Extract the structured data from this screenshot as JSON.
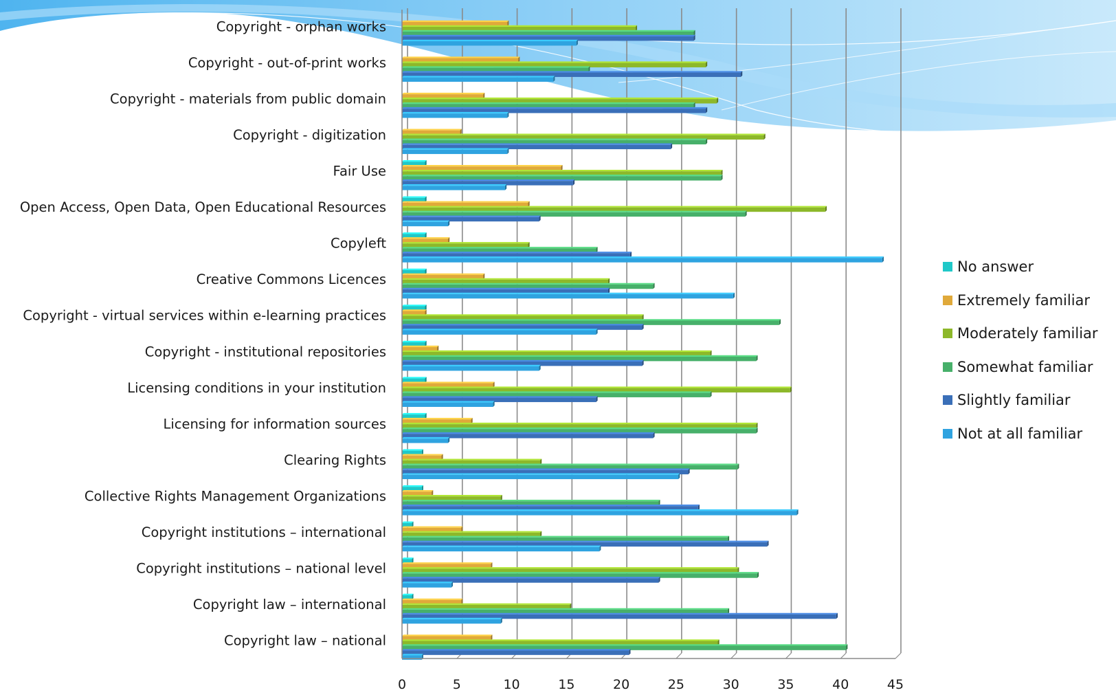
{
  "chart_data": {
    "type": "bar",
    "orientation": "horizontal",
    "categories": [
      "Copyright - orphan works",
      "Copyright -  out-of-print works",
      "Copyright - materials from public domain",
      "Copyright - digitization",
      "Fair Use",
      "Open Access, Open Data, Open Educational Resources",
      "Copyleft",
      "Creative Commons Licences",
      "Copyright - virtual services within e-learning practices",
      "Copyright - institutional repositories",
      "Licensing conditions in your institution",
      "Licensing for information sources",
      "Clearing Rights",
      "Collective Rights Management Organizations",
      "Copyright institutions – international",
      "Copyright institutions – national level",
      "Copyright  law – international",
      "Copyright law – national"
    ],
    "series": [
      {
        "name": "No answer",
        "color": "#1fc8c8",
        "values": [
          0,
          0,
          0,
          0,
          2.1,
          2.1,
          2.1,
          2.1,
          2.1,
          2.1,
          2.1,
          2.1,
          1.8,
          1.8,
          0.9,
          0.9,
          0.9,
          0
        ]
      },
      {
        "name": "Extremely familiar",
        "color": "#e0a93a",
        "values": [
          9.6,
          10.6,
          7.4,
          5.3,
          14.5,
          11.5,
          4.2,
          7.4,
          2.1,
          3.2,
          8.3,
          6.3,
          3.6,
          2.7,
          5.4,
          8.1,
          5.4,
          8.1
        ]
      },
      {
        "name": "Moderately familiar",
        "color": "#8db82a",
        "values": [
          21.3,
          27.7,
          28.7,
          33.0,
          29.1,
          38.6,
          11.5,
          18.8,
          21.9,
          28.1,
          35.4,
          32.3,
          12.6,
          9.0,
          12.6,
          30.6,
          15.3,
          28.8
        ]
      },
      {
        "name": "Somewhat familiar",
        "color": "#47b06a",
        "values": [
          26.6,
          17.0,
          26.6,
          27.7,
          29.1,
          31.3,
          17.7,
          22.9,
          34.4,
          32.3,
          28.1,
          32.3,
          30.6,
          23.4,
          29.7,
          32.4,
          29.7,
          40.5
        ]
      },
      {
        "name": "Slightly familiar",
        "color": "#3a6fb8",
        "values": [
          26.6,
          30.9,
          27.7,
          24.5,
          15.6,
          12.5,
          20.8,
          18.8,
          21.9,
          21.9,
          17.7,
          22.9,
          26.1,
          27.0,
          33.3,
          23.4,
          39.6,
          20.7
        ]
      },
      {
        "name": "Not at all familiar",
        "color": "#2fa3e0",
        "values": [
          15.9,
          13.8,
          9.6,
          9.6,
          9.4,
          4.2,
          43.8,
          30.2,
          17.7,
          12.5,
          8.3,
          4.2,
          25.2,
          36.0,
          18.0,
          4.5,
          9.0,
          1.8
        ]
      }
    ],
    "xlim": [
      0,
      45
    ],
    "xticks": [
      "0",
      "5",
      "10",
      "15",
      "20",
      "25",
      "30",
      "35",
      "40",
      "45"
    ],
    "grid": "vertical",
    "legend_position": "right"
  }
}
